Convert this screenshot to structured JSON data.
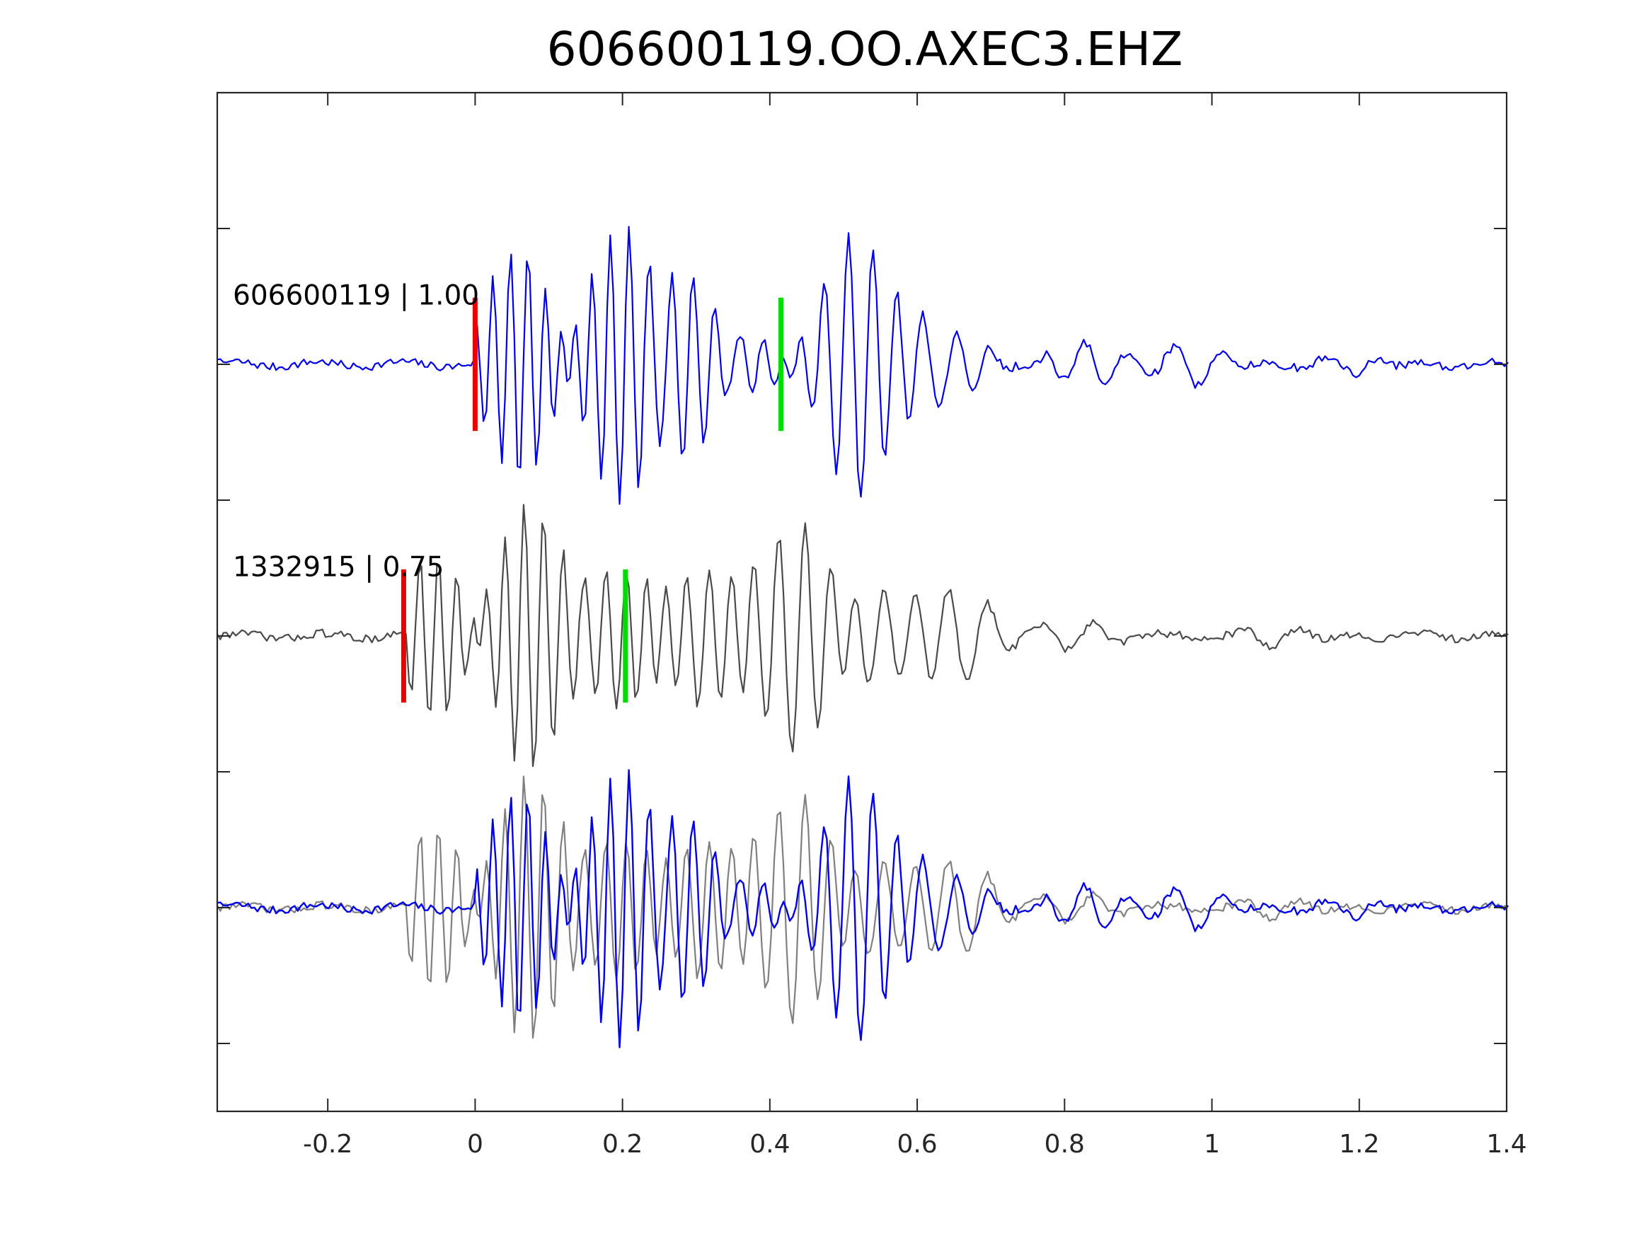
{
  "chart_data": {
    "type": "line",
    "title": "606600119.OO.AXEC3.EHZ",
    "xlabel": "",
    "ylabel": "",
    "xlim": [
      -0.35,
      1.4
    ],
    "ylim": [
      0,
      3.75
    ],
    "x_ticks": [
      "-0.2",
      "0",
      "0.2",
      "0.4",
      "0.6",
      "0.8",
      "1",
      "1.2",
      "1.4"
    ],
    "x_tick_values": [
      -0.2,
      0,
      0.2,
      0.4,
      0.6,
      0.8,
      1,
      1.2,
      1.4
    ],
    "y_tick_values": [
      0.25,
      0.75,
      1.25,
      1.75,
      2.25,
      2.75,
      3.25
    ],
    "y_tick_labels_shown": false,
    "grid": false,
    "colors": {
      "template": "#0000ee",
      "detection": "#4a4a4a",
      "detection_overlay": "#808080",
      "p_pick": "#ee0000",
      "s_pick": "#00dd00"
    },
    "traces": [
      {
        "id": "template",
        "label": "606600119 | 1.00",
        "event_id": "606600119",
        "correlation": "1.00",
        "baseline": 2.75,
        "amplitude": 0.5,
        "color": "#0000ee",
        "p_pick": 0.0,
        "s_pick": 0.415,
        "marker_half_height": 0.245,
        "onset": 0.0,
        "bursts": [
          {
            "t": 0.065,
            "a": 0.9,
            "f": 42
          },
          {
            "t": 0.19,
            "a": 0.92,
            "f": 40
          },
          {
            "t": 0.28,
            "a": 0.8,
            "f": 36
          },
          {
            "t": 0.36,
            "a": 0.3,
            "f": 34
          },
          {
            "t": 0.52,
            "a": 1.0,
            "f": 30
          },
          {
            "t": 0.64,
            "a": 0.28,
            "f": 22
          },
          {
            "t": 0.82,
            "a": 0.15,
            "f": 18
          },
          {
            "t": 0.97,
            "a": 0.14,
            "f": 16
          },
          {
            "t": 1.2,
            "a": 0.06,
            "f": 14
          }
        ]
      },
      {
        "id": "detection",
        "label": "1332915 | 0.75",
        "event_id": "1332915",
        "correlation": "0.75",
        "baseline": 1.75,
        "amplitude": 0.5,
        "color": "#4a4a4a",
        "p_pick": -0.097,
        "s_pick": 0.204,
        "marker_half_height": 0.245,
        "onset": -0.097,
        "bursts": [
          {
            "t": -0.05,
            "a": 0.65,
            "f": 40
          },
          {
            "t": 0.07,
            "a": 1.0,
            "f": 38
          },
          {
            "t": 0.2,
            "a": 0.55,
            "f": 36
          },
          {
            "t": 0.32,
            "a": 0.5,
            "f": 32
          },
          {
            "t": 0.44,
            "a": 0.85,
            "f": 28
          },
          {
            "t": 0.57,
            "a": 0.35,
            "f": 22
          },
          {
            "t": 0.66,
            "a": 0.3,
            "f": 18
          },
          {
            "t": 0.8,
            "a": 0.12,
            "f": 14
          },
          {
            "t": 1.1,
            "a": 0.08,
            "f": 12
          }
        ]
      }
    ],
    "overlay": {
      "baseline": 0.75,
      "amplitude": 0.5,
      "detection_shift": 0.0,
      "colors": [
        "#808080",
        "#0000ee"
      ]
    }
  }
}
